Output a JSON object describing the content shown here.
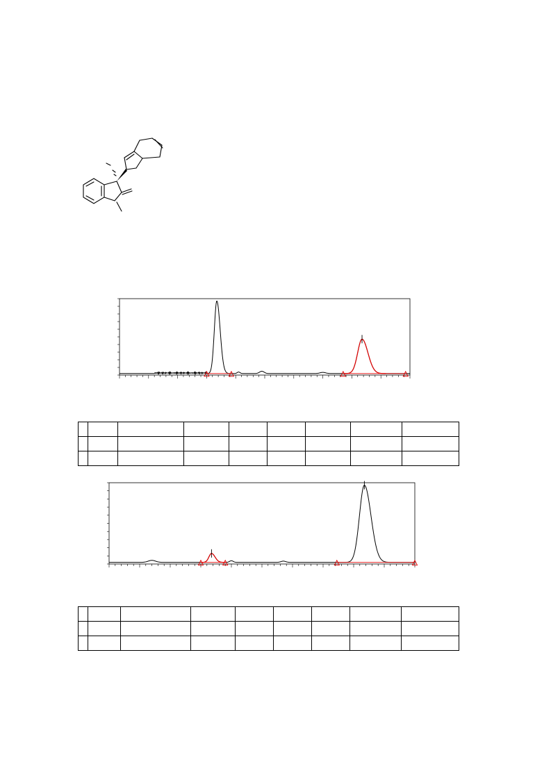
{
  "page": {
    "width": 793,
    "height": 1123,
    "background": "#ffffff"
  },
  "structure": {
    "type": "molecule",
    "stereo_bond": "wedge",
    "color": "#000000"
  },
  "colors": {
    "trace": "#000000",
    "integration": "#e00000",
    "frame": "#000000"
  },
  "tables": [
    {
      "rows": 3,
      "columns": 9,
      "cells": []
    },
    {
      "rows": 3,
      "columns": 9,
      "cells": []
    }
  ],
  "chart_data": [
    {
      "type": "line",
      "title": "",
      "xlabel": "",
      "ylabel": "",
      "ylim": [
        0,
        100
      ],
      "grid": false,
      "legend": "none",
      "baseline": 2,
      "noise_region": [
        0.12,
        0.3
      ],
      "peaks": [
        {
          "center": 0.335,
          "height": 95,
          "width": 0.0085,
          "integrated": false,
          "marker": false
        },
        {
          "center": 0.835,
          "height": 45,
          "width": 0.015,
          "integrated": true,
          "marker": true
        }
      ],
      "minor_bumps": [
        {
          "center": 0.41,
          "height": 2,
          "width": 0.005
        },
        {
          "center": 0.49,
          "height": 3,
          "width": 0.008
        },
        {
          "center": 0.7,
          "height": 1.5,
          "width": 0.01
        }
      ],
      "integration_markers": [
        0.3,
        0.385,
        0.77,
        0.985
      ]
    },
    {
      "type": "line",
      "title": "",
      "xlabel": "",
      "ylabel": "",
      "ylim": [
        0,
        100
      ],
      "grid": false,
      "legend": "none",
      "baseline": 2,
      "noise_region": [
        0.0,
        0.0
      ],
      "peaks": [
        {
          "center": 0.335,
          "height": 11,
          "width": 0.0085,
          "integrated": true,
          "marker": true
        },
        {
          "center": 0.835,
          "height": 95,
          "width": 0.016,
          "integrated": false,
          "marker": true
        }
      ],
      "minor_bumps": [
        {
          "center": 0.14,
          "height": 2.5,
          "width": 0.012
        },
        {
          "center": 0.4,
          "height": 2,
          "width": 0.006
        },
        {
          "center": 0.57,
          "height": 1.5,
          "width": 0.008
        }
      ],
      "integration_markers": [
        0.3,
        0.38,
        0.745,
        1.0
      ]
    }
  ]
}
